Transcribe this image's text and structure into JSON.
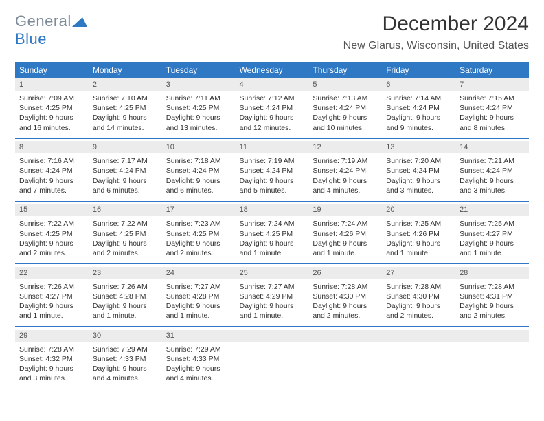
{
  "brand": {
    "part1": "General",
    "part2": "Blue"
  },
  "title": "December 2024",
  "location": "New Glarus, Wisconsin, United States",
  "headers": [
    "Sunday",
    "Monday",
    "Tuesday",
    "Wednesday",
    "Thursday",
    "Friday",
    "Saturday"
  ],
  "colors": {
    "header_bg": "#2f78c4",
    "daynum_bg": "#ececec",
    "rule": "#2f78c4"
  },
  "weeks": [
    [
      {
        "n": "1",
        "sr": "Sunrise: 7:09 AM",
        "ss": "Sunset: 4:25 PM",
        "d1": "Daylight: 9 hours",
        "d2": "and 16 minutes."
      },
      {
        "n": "2",
        "sr": "Sunrise: 7:10 AM",
        "ss": "Sunset: 4:25 PM",
        "d1": "Daylight: 9 hours",
        "d2": "and 14 minutes."
      },
      {
        "n": "3",
        "sr": "Sunrise: 7:11 AM",
        "ss": "Sunset: 4:25 PM",
        "d1": "Daylight: 9 hours",
        "d2": "and 13 minutes."
      },
      {
        "n": "4",
        "sr": "Sunrise: 7:12 AM",
        "ss": "Sunset: 4:24 PM",
        "d1": "Daylight: 9 hours",
        "d2": "and 12 minutes."
      },
      {
        "n": "5",
        "sr": "Sunrise: 7:13 AM",
        "ss": "Sunset: 4:24 PM",
        "d1": "Daylight: 9 hours",
        "d2": "and 10 minutes."
      },
      {
        "n": "6",
        "sr": "Sunrise: 7:14 AM",
        "ss": "Sunset: 4:24 PM",
        "d1": "Daylight: 9 hours",
        "d2": "and 9 minutes."
      },
      {
        "n": "7",
        "sr": "Sunrise: 7:15 AM",
        "ss": "Sunset: 4:24 PM",
        "d1": "Daylight: 9 hours",
        "d2": "and 8 minutes."
      }
    ],
    [
      {
        "n": "8",
        "sr": "Sunrise: 7:16 AM",
        "ss": "Sunset: 4:24 PM",
        "d1": "Daylight: 9 hours",
        "d2": "and 7 minutes."
      },
      {
        "n": "9",
        "sr": "Sunrise: 7:17 AM",
        "ss": "Sunset: 4:24 PM",
        "d1": "Daylight: 9 hours",
        "d2": "and 6 minutes."
      },
      {
        "n": "10",
        "sr": "Sunrise: 7:18 AM",
        "ss": "Sunset: 4:24 PM",
        "d1": "Daylight: 9 hours",
        "d2": "and 6 minutes."
      },
      {
        "n": "11",
        "sr": "Sunrise: 7:19 AM",
        "ss": "Sunset: 4:24 PM",
        "d1": "Daylight: 9 hours",
        "d2": "and 5 minutes."
      },
      {
        "n": "12",
        "sr": "Sunrise: 7:19 AM",
        "ss": "Sunset: 4:24 PM",
        "d1": "Daylight: 9 hours",
        "d2": "and 4 minutes."
      },
      {
        "n": "13",
        "sr": "Sunrise: 7:20 AM",
        "ss": "Sunset: 4:24 PM",
        "d1": "Daylight: 9 hours",
        "d2": "and 3 minutes."
      },
      {
        "n": "14",
        "sr": "Sunrise: 7:21 AM",
        "ss": "Sunset: 4:24 PM",
        "d1": "Daylight: 9 hours",
        "d2": "and 3 minutes."
      }
    ],
    [
      {
        "n": "15",
        "sr": "Sunrise: 7:22 AM",
        "ss": "Sunset: 4:25 PM",
        "d1": "Daylight: 9 hours",
        "d2": "and 2 minutes."
      },
      {
        "n": "16",
        "sr": "Sunrise: 7:22 AM",
        "ss": "Sunset: 4:25 PM",
        "d1": "Daylight: 9 hours",
        "d2": "and 2 minutes."
      },
      {
        "n": "17",
        "sr": "Sunrise: 7:23 AM",
        "ss": "Sunset: 4:25 PM",
        "d1": "Daylight: 9 hours",
        "d2": "and 2 minutes."
      },
      {
        "n": "18",
        "sr": "Sunrise: 7:24 AM",
        "ss": "Sunset: 4:25 PM",
        "d1": "Daylight: 9 hours",
        "d2": "and 1 minute."
      },
      {
        "n": "19",
        "sr": "Sunrise: 7:24 AM",
        "ss": "Sunset: 4:26 PM",
        "d1": "Daylight: 9 hours",
        "d2": "and 1 minute."
      },
      {
        "n": "20",
        "sr": "Sunrise: 7:25 AM",
        "ss": "Sunset: 4:26 PM",
        "d1": "Daylight: 9 hours",
        "d2": "and 1 minute."
      },
      {
        "n": "21",
        "sr": "Sunrise: 7:25 AM",
        "ss": "Sunset: 4:27 PM",
        "d1": "Daylight: 9 hours",
        "d2": "and 1 minute."
      }
    ],
    [
      {
        "n": "22",
        "sr": "Sunrise: 7:26 AM",
        "ss": "Sunset: 4:27 PM",
        "d1": "Daylight: 9 hours",
        "d2": "and 1 minute."
      },
      {
        "n": "23",
        "sr": "Sunrise: 7:26 AM",
        "ss": "Sunset: 4:28 PM",
        "d1": "Daylight: 9 hours",
        "d2": "and 1 minute."
      },
      {
        "n": "24",
        "sr": "Sunrise: 7:27 AM",
        "ss": "Sunset: 4:28 PM",
        "d1": "Daylight: 9 hours",
        "d2": "and 1 minute."
      },
      {
        "n": "25",
        "sr": "Sunrise: 7:27 AM",
        "ss": "Sunset: 4:29 PM",
        "d1": "Daylight: 9 hours",
        "d2": "and 1 minute."
      },
      {
        "n": "26",
        "sr": "Sunrise: 7:28 AM",
        "ss": "Sunset: 4:30 PM",
        "d1": "Daylight: 9 hours",
        "d2": "and 2 minutes."
      },
      {
        "n": "27",
        "sr": "Sunrise: 7:28 AM",
        "ss": "Sunset: 4:30 PM",
        "d1": "Daylight: 9 hours",
        "d2": "and 2 minutes."
      },
      {
        "n": "28",
        "sr": "Sunrise: 7:28 AM",
        "ss": "Sunset: 4:31 PM",
        "d1": "Daylight: 9 hours",
        "d2": "and 2 minutes."
      }
    ],
    [
      {
        "n": "29",
        "sr": "Sunrise: 7:28 AM",
        "ss": "Sunset: 4:32 PM",
        "d1": "Daylight: 9 hours",
        "d2": "and 3 minutes."
      },
      {
        "n": "30",
        "sr": "Sunrise: 7:29 AM",
        "ss": "Sunset: 4:33 PM",
        "d1": "Daylight: 9 hours",
        "d2": "and 4 minutes."
      },
      {
        "n": "31",
        "sr": "Sunrise: 7:29 AM",
        "ss": "Sunset: 4:33 PM",
        "d1": "Daylight: 9 hours",
        "d2": "and 4 minutes."
      },
      null,
      null,
      null,
      null
    ]
  ]
}
